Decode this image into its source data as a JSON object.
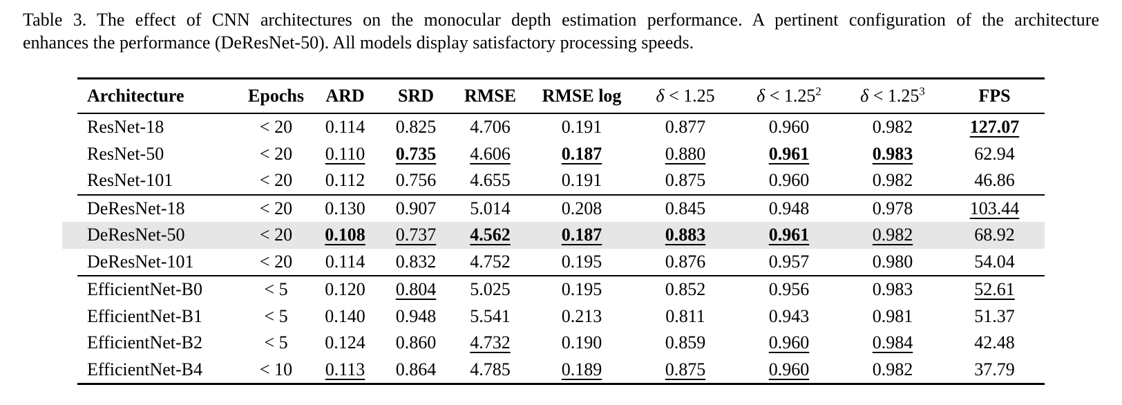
{
  "caption": {
    "line1": "Table 3. The effect of CNN architectures on the monocular depth estimation performance. A pertinent configuration of the architecture",
    "line2": "enhances the performance (DeResNet-50). All models display satisfactory processing speeds."
  },
  "table": {
    "highlight_color": "#e6e6e6",
    "columns": [
      {
        "italic": "",
        "text": "Architecture",
        "sup": ""
      },
      {
        "italic": "",
        "text": "Epochs",
        "sup": ""
      },
      {
        "italic": "",
        "text": "ARD",
        "sup": ""
      },
      {
        "italic": "",
        "text": "SRD",
        "sup": ""
      },
      {
        "italic": "",
        "text": "RMSE",
        "sup": ""
      },
      {
        "italic": "",
        "text": "RMSE log",
        "sup": ""
      },
      {
        "italic": "δ",
        "text": " < 1.25",
        "sup": ""
      },
      {
        "italic": "δ",
        "text": " < 1.25",
        "sup": "2"
      },
      {
        "italic": "δ",
        "text": " < 1.25",
        "sup": "3"
      },
      {
        "italic": "",
        "text": "FPS",
        "sup": ""
      }
    ],
    "groups": [
      {
        "name": "resnet",
        "rows": [
          {
            "highlight": false,
            "cells": [
              [
                "ResNet-18"
              ],
              [
                "< 20"
              ],
              [
                "0.114"
              ],
              [
                "0.825"
              ],
              [
                "4.706"
              ],
              [
                "0.191"
              ],
              [
                "0.877"
              ],
              [
                "0.960"
              ],
              [
                "0.982"
              ],
              [
                "127.07",
                "bu"
              ]
            ]
          },
          {
            "highlight": false,
            "cells": [
              [
                "ResNet-50"
              ],
              [
                "< 20"
              ],
              [
                "0.110",
                "u"
              ],
              [
                "0.735",
                "bu"
              ],
              [
                "4.606",
                "u"
              ],
              [
                "0.187",
                "bu"
              ],
              [
                "0.880",
                "u"
              ],
              [
                "0.961",
                "bu"
              ],
              [
                "0.983",
                "bu"
              ],
              [
                "62.94"
              ]
            ]
          },
          {
            "highlight": false,
            "cells": [
              [
                "ResNet-101"
              ],
              [
                "< 20"
              ],
              [
                "0.112"
              ],
              [
                "0.756"
              ],
              [
                "4.655"
              ],
              [
                "0.191"
              ],
              [
                "0.875"
              ],
              [
                "0.960"
              ],
              [
                "0.982"
              ],
              [
                "46.86"
              ]
            ]
          }
        ]
      },
      {
        "name": "deresnet",
        "rows": [
          {
            "highlight": false,
            "cells": [
              [
                "DeResNet-18"
              ],
              [
                "< 20"
              ],
              [
                "0.130"
              ],
              [
                "0.907"
              ],
              [
                "5.014"
              ],
              [
                "0.208"
              ],
              [
                "0.845"
              ],
              [
                "0.948"
              ],
              [
                "0.978"
              ],
              [
                "103.44",
                "u"
              ]
            ]
          },
          {
            "highlight": true,
            "cells": [
              [
                "DeResNet-50"
              ],
              [
                "< 20"
              ],
              [
                "0.108",
                "bu"
              ],
              [
                "0.737",
                "u"
              ],
              [
                "4.562",
                "bu"
              ],
              [
                "0.187",
                "bu"
              ],
              [
                "0.883",
                "bu"
              ],
              [
                "0.961",
                "bu"
              ],
              [
                "0.982",
                "u"
              ],
              [
                "68.92"
              ]
            ]
          },
          {
            "highlight": false,
            "cells": [
              [
                "DeResNet-101"
              ],
              [
                "< 20"
              ],
              [
                "0.114"
              ],
              [
                "0.832"
              ],
              [
                "4.752"
              ],
              [
                "0.195"
              ],
              [
                "0.876"
              ],
              [
                "0.957"
              ],
              [
                "0.980"
              ],
              [
                "54.04"
              ]
            ]
          }
        ]
      },
      {
        "name": "efficientnet",
        "rows": [
          {
            "highlight": false,
            "cells": [
              [
                "EfficientNet-B0"
              ],
              [
                "< 5"
              ],
              [
                "0.120"
              ],
              [
                "0.804",
                "u"
              ],
              [
                "5.025"
              ],
              [
                "0.195"
              ],
              [
                "0.852"
              ],
              [
                "0.956"
              ],
              [
                "0.983"
              ],
              [
                "52.61",
                "u"
              ]
            ]
          },
          {
            "highlight": false,
            "cells": [
              [
                "EfficientNet-B1"
              ],
              [
                "< 5"
              ],
              [
                "0.140"
              ],
              [
                "0.948"
              ],
              [
                "5.541"
              ],
              [
                "0.213"
              ],
              [
                "0.811"
              ],
              [
                "0.943"
              ],
              [
                "0.981"
              ],
              [
                "51.37"
              ]
            ]
          },
          {
            "highlight": false,
            "cells": [
              [
                "EfficientNet-B2"
              ],
              [
                "< 5"
              ],
              [
                "0.124"
              ],
              [
                "0.860"
              ],
              [
                "4.732",
                "u"
              ],
              [
                "0.190"
              ],
              [
                "0.859"
              ],
              [
                "0.960",
                "u"
              ],
              [
                "0.984",
                "u"
              ],
              [
                "42.48"
              ]
            ]
          },
          {
            "highlight": false,
            "cells": [
              [
                "EfficientNet-B4"
              ],
              [
                "< 10"
              ],
              [
                "0.113",
                "u"
              ],
              [
                "0.864"
              ],
              [
                "4.785"
              ],
              [
                "0.189",
                "u"
              ],
              [
                "0.875",
                "u"
              ],
              [
                "0.960",
                "u"
              ],
              [
                "0.982"
              ],
              [
                "37.79"
              ]
            ]
          }
        ]
      }
    ]
  }
}
